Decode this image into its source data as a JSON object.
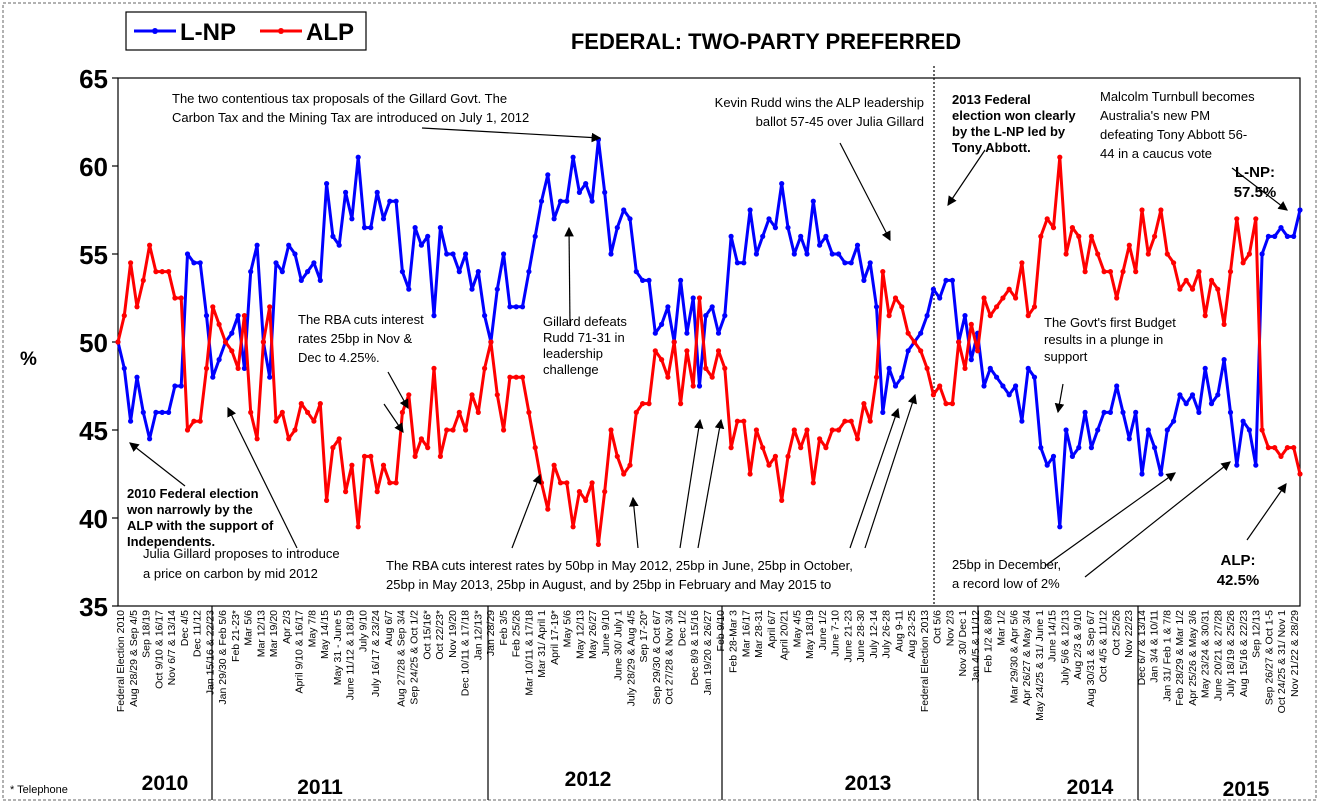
{
  "chart_data": {
    "type": "line",
    "title": "FEDERAL: TWO-PARTY PREFERRED",
    "ylabel": "%",
    "ylim": [
      35,
      65
    ],
    "yticks": [
      35,
      40,
      45,
      50,
      55,
      60,
      65
    ],
    "grid": false,
    "legend_position": "top-left",
    "footnote": "* Telephone",
    "colors": {
      "lnp": "#0000ff",
      "alp": "#ff0000"
    },
    "series": [
      {
        "name": "L-NP",
        "color": "#0000ff",
        "values": [
          50,
          48.5,
          45.5,
          48,
          46,
          44.5,
          46,
          46,
          46,
          47.5,
          47.5,
          55,
          54.5,
          54.5,
          51.5,
          48,
          49,
          50,
          50.5,
          51.5,
          48.5,
          54,
          55.5,
          50,
          48,
          54.5,
          54,
          55.5,
          55,
          53.5,
          54,
          54.5,
          53.5,
          59,
          56,
          55.5,
          58.5,
          57,
          60.5,
          56.5,
          56.5,
          58.5,
          57,
          58,
          58,
          54,
          53,
          56.5,
          55.5,
          56,
          51.5,
          56.5,
          55,
          55,
          54,
          55,
          53,
          54,
          51.5,
          50,
          53,
          55,
          52,
          52,
          52,
          54,
          56,
          58,
          59.5,
          57,
          58,
          58,
          60.5,
          58.5,
          59,
          58,
          61.5,
          58.5,
          55,
          56.5,
          57.5,
          57,
          54,
          53.5,
          53.5,
          50.5,
          51,
          52,
          50,
          53.5,
          50.5,
          52.5,
          47.5,
          51.5,
          52,
          50.5,
          51.5,
          56,
          54.5,
          54.5,
          57.5,
          55,
          56,
          57,
          56.5,
          59,
          56.5,
          55,
          56,
          55,
          58,
          55.5,
          56,
          55,
          55,
          54.5,
          54.5,
          55.5,
          53.5,
          54.5,
          52,
          46,
          48.5,
          47.5,
          48,
          49.5,
          50,
          50.5,
          51.5,
          53,
          52.5,
          53.5,
          53.5,
          50,
          51.5,
          49,
          50.5,
          47.5,
          48.5,
          48,
          47.5,
          47,
          47.5,
          45.5,
          48.5,
          48,
          44,
          43,
          43.5,
          39.5,
          45,
          43.5,
          44,
          46,
          44,
          45,
          46,
          46,
          47.5,
          46,
          44.5,
          46,
          42.5,
          45,
          44,
          42.5,
          45,
          45.5,
          47,
          46.5,
          47,
          46,
          48.5,
          46.5,
          47,
          49,
          46,
          43,
          45.5,
          45,
          43,
          55,
          56,
          56,
          56.5,
          56,
          56,
          57.5
        ]
      },
      {
        "name": "ALP",
        "color": "#ff0000",
        "values": [
          50,
          51.5,
          54.5,
          52,
          53.5,
          55.5,
          54,
          54,
          54,
          52.5,
          52.5,
          45,
          45.5,
          45.5,
          48.5,
          52,
          51,
          50,
          49.5,
          48.5,
          51.5,
          46,
          44.5,
          50,
          52,
          45.5,
          46,
          44.5,
          45,
          46.5,
          46,
          45.5,
          46.5,
          41,
          44,
          44.5,
          41.5,
          43,
          39.5,
          43.5,
          43.5,
          41.5,
          43,
          42,
          42,
          46,
          47,
          43.5,
          44.5,
          44,
          48.5,
          43.5,
          45,
          45,
          46,
          45,
          47,
          46,
          48.5,
          50,
          47,
          45,
          48,
          48,
          48,
          46,
          44,
          42,
          40.5,
          43,
          42,
          42,
          39.5,
          41.5,
          41,
          42,
          38.5,
          41.5,
          45,
          43.5,
          42.5,
          43,
          46,
          46.5,
          46.5,
          49.5,
          49,
          48,
          50,
          46.5,
          49.5,
          47.5,
          52.5,
          48.5,
          48,
          49.5,
          48.5,
          44,
          45.5,
          45.5,
          42.5,
          45,
          44,
          43,
          43.5,
          41,
          43.5,
          45,
          44,
          45,
          42,
          44.5,
          44,
          45,
          45,
          45.5,
          45.5,
          44.5,
          46.5,
          45.5,
          48,
          54,
          51.5,
          52.5,
          52,
          50.5,
          50,
          49.5,
          48.5,
          47,
          47.5,
          46.5,
          46.5,
          50,
          48.5,
          51,
          49.5,
          52.5,
          51.5,
          52,
          52.5,
          53,
          52.5,
          54.5,
          51.5,
          52,
          56,
          57,
          56.5,
          60.5,
          55,
          56.5,
          56,
          54,
          56,
          55,
          54,
          54,
          52.5,
          54,
          55.5,
          54,
          57.5,
          55,
          56,
          57.5,
          55,
          54.5,
          53,
          53.5,
          53,
          54,
          51.5,
          53.5,
          53,
          51,
          54,
          57,
          54.5,
          55,
          57,
          45,
          44,
          44,
          43.5,
          44,
          44,
          42.5
        ]
      }
    ],
    "years": [
      "2010",
      "2011",
      "2012",
      "2013",
      "2014",
      "2015"
    ],
    "series_end_labels": {
      "lnp": "L-NP:\n57.5%",
      "alp": "ALP:\n42.5%"
    },
    "x_labels": [
      "Federal Election 2010",
      "Aug 28/29 & Sep 4/5",
      "Sep 18/19",
      "Oct 9/10 & 16/17",
      "Nov 6/7 & 13/14",
      "Dec 4/5",
      "Dec 11/12",
      "Jan 15/16 & 22/23",
      "Jan 29/30 & Feb 5/6",
      "Feb 21-23*",
      "Mar 5/6",
      "Mar 12/13",
      "Mar 19/20",
      "Apr 2/3",
      "April 9/10 & 16/17",
      "May 7/8",
      "May 14/15",
      "May 31 - June 5",
      "June 11/12 & 18/19",
      "July 9/10",
      "July 16/17 & 23/24",
      "Aug 6/7",
      "Aug 27/28 & Sep 3/4",
      "Sep 24/25 & Oct 1/2",
      "Oct 15/16*",
      "Oct 22/23*",
      "Nov 19/20",
      "Dec 10/11 & 17/18",
      "Jan 12/13*",
      "Jan 28/29",
      "Feb 3/5",
      "Feb 25/26",
      "Mar 10/11 & 17/18",
      "Mar 31/ April 1",
      "April 17-19*",
      "May 5/6",
      "May 12/13",
      "May 26/27",
      "June 9/10",
      "June 30/ July 1",
      "July 28/29 & Aug 4/5",
      "Sep 17-20*",
      "Sep 29/30 & Oct 6/7",
      "Oct 27/28 & Nov 3/4",
      "Dec 1/2",
      "Dec 8/9 & 15/16",
      "Jan 19/20 & 26/27",
      "Feb 9/10",
      "Feb 28-Mar 3",
      "Mar 16/17",
      "Mar 28-31",
      "April 6/7",
      "April 20/21",
      "May 4/5",
      "May 18/19",
      "June 1/2",
      "June 7-10",
      "June 21-23",
      "June 28-30",
      "July 12-14",
      "July 26-28",
      "Aug 9-11",
      "Aug 23-25",
      "Federal Election 2013",
      "Oct 5/6",
      "Nov 2/3",
      "Nov 30/ Dec 1",
      "Jan 4/5 & 11/12",
      "Feb 1/2 & 8/9",
      "Mar 1/2",
      "Mar 29/30 & Apr 5/6",
      "Apr 26/27 & May 3/4",
      "May 24/25 & 31/ June 1",
      "June 14/15",
      "July 5/6 & 12/13",
      "Aug 2/3 & 9/10",
      "Aug 30/31 & Sep 6/7",
      "Oct 4/5 & 11/12",
      "Oct 25/26",
      "Nov 22/23",
      "Dec 6/7 & 13/14",
      "Jan 3/4 & 10/11",
      "Jan 31/ Feb 1 & 7/8",
      "Feb 28/29 & Mar 1/2",
      "Apr 25/26 & May 3/6",
      "May 23/24 & 30/31",
      "June 20/21 & 27/28",
      "July 18/19 & 25/26",
      "Aug 15/16 & 22/23",
      "Sep 12/13",
      "Sep 26/27 & Oct 1-5",
      "Oct 24/25 & 31/ Nov 1",
      "Nov 21/22 & 28/29"
    ],
    "annotations": [
      {
        "lines": [
          "The two contentious tax proposals of the Gillard Govt. The",
          "Carbon Tax and the Mining Tax are introduced on July 1, 2012"
        ]
      },
      {
        "lines": [
          "Kevin Rudd wins the ALP leadership",
          "ballot 57-45 over Julia Gillard"
        ]
      },
      {
        "lines": [
          "2013 Federal",
          "election won clearly",
          "by the L-NP led by",
          "Tony Abbott."
        ]
      },
      {
        "lines": [
          "Malcolm Turnbull becomes",
          "Australia's new PM",
          "defeating Tony Abbott 56-",
          "44 in a caucus vote"
        ]
      },
      {
        "lines": [
          "The RBA cuts interest",
          "rates 25bp in Nov &",
          "Dec to 4.25%."
        ]
      },
      {
        "lines": [
          "Gillard defeats",
          "Rudd 71-31 in",
          "leadership",
          "challenge"
        ]
      },
      {
        "lines": [
          "The Govt's first Budget",
          "results in a plunge in",
          "support"
        ]
      },
      {
        "lines": [
          "2010 Federal election",
          "won narrowly by the",
          "ALP with the support of",
          "Independents."
        ]
      },
      {
        "lines": [
          "Julia Gillard proposes to introduce",
          "a price on carbon by mid 2012"
        ]
      },
      {
        "lines": [
          "The RBA cuts interest rates by 50bp in May 2012, 25bp in June, 25bp in October,",
          "25bp  in May  2013,  25bp in August, and by 25bp   in  February and May 2015 to"
        ]
      },
      {
        "lines": [
          "25bp in December,",
          "a record low of 2%"
        ]
      }
    ]
  }
}
